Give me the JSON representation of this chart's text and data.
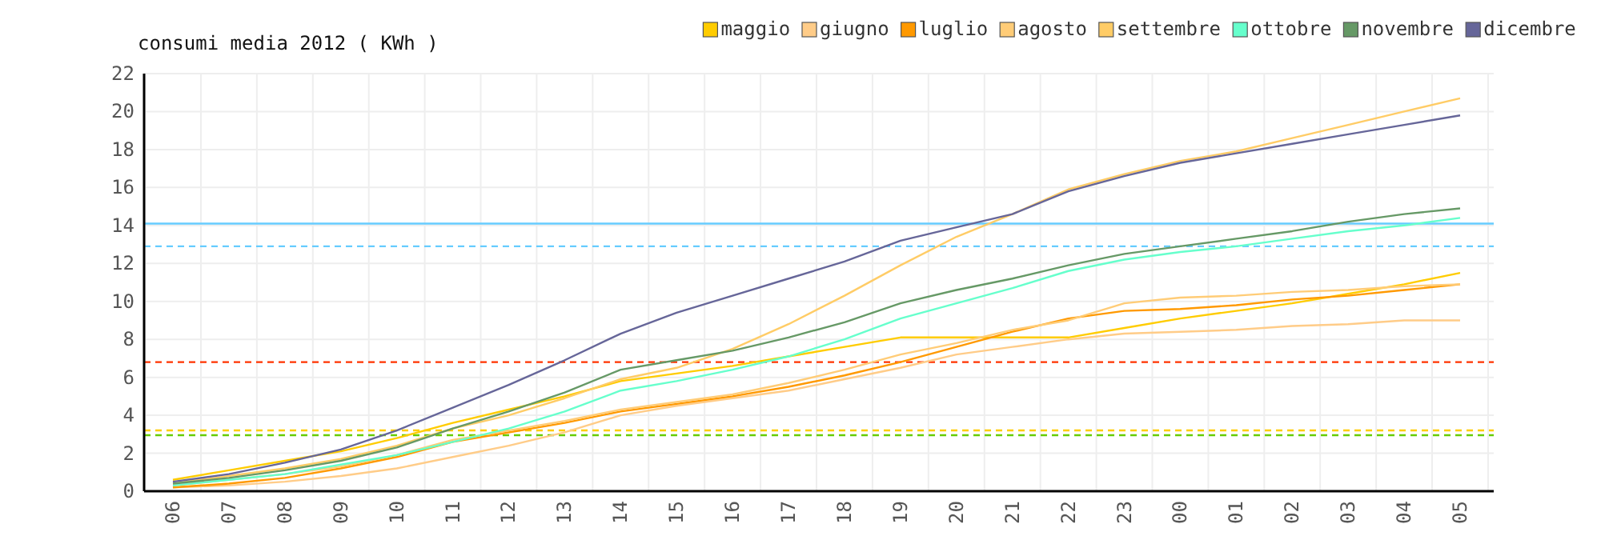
{
  "chart_data": {
    "type": "line",
    "title": "consumi media 2012 ( KWh )",
    "categories": [
      "06",
      "07",
      "08",
      "09",
      "10",
      "11",
      "12",
      "13",
      "14",
      "15",
      "16",
      "17",
      "18",
      "19",
      "20",
      "21",
      "22",
      "23",
      "00",
      "01",
      "02",
      "03",
      "04",
      "05"
    ],
    "series": [
      {
        "name": "maggio",
        "color": "#ffcc00",
        "values": [
          0.6,
          1.1,
          1.6,
          2.1,
          2.8,
          3.6,
          4.3,
          5.0,
          5.8,
          6.2,
          6.6,
          7.1,
          7.6,
          8.1,
          8.1,
          8.1,
          8.1,
          8.6,
          9.1,
          9.5,
          9.9,
          10.4,
          10.9,
          11.5
        ]
      },
      {
        "name": "giugno",
        "color": "#ffcc88",
        "values": [
          0.2,
          0.3,
          0.5,
          0.8,
          1.2,
          1.8,
          2.4,
          3.1,
          4.0,
          4.5,
          4.9,
          5.3,
          5.9,
          6.5,
          7.2,
          7.6,
          8.0,
          8.3,
          8.4,
          8.5,
          8.7,
          8.8,
          9.0,
          9.0
        ]
      },
      {
        "name": "luglio",
        "color": "#ff9900",
        "values": [
          0.2,
          0.4,
          0.7,
          1.2,
          1.8,
          2.6,
          3.1,
          3.6,
          4.2,
          4.6,
          5.0,
          5.5,
          6.1,
          6.8,
          7.6,
          8.4,
          9.1,
          9.5,
          9.6,
          9.8,
          10.1,
          10.3,
          10.6,
          10.9
        ]
      },
      {
        "name": "agosto",
        "color": "#ffcc77",
        "values": [
          0.3,
          0.6,
          0.9,
          1.3,
          1.9,
          2.7,
          3.2,
          3.7,
          4.3,
          4.7,
          5.1,
          5.7,
          6.4,
          7.2,
          7.8,
          8.5,
          9.0,
          9.9,
          10.2,
          10.3,
          10.5,
          10.6,
          10.8,
          10.9
        ]
      },
      {
        "name": "settembre",
        "color": "#ffcc66",
        "values": [
          0.4,
          0.8,
          1.2,
          1.7,
          2.4,
          3.3,
          4.0,
          4.9,
          5.9,
          6.5,
          7.5,
          8.8,
          10.3,
          11.9,
          13.4,
          14.6,
          15.9,
          16.7,
          17.4,
          17.9,
          18.6,
          19.3,
          20.0,
          20.7
        ]
      },
      {
        "name": "ottobre",
        "color": "#66ffcc",
        "values": [
          0.3,
          0.6,
          0.9,
          1.4,
          1.9,
          2.6,
          3.3,
          4.2,
          5.3,
          5.8,
          6.4,
          7.1,
          8.0,
          9.1,
          9.9,
          10.7,
          11.6,
          12.2,
          12.6,
          12.9,
          13.3,
          13.7,
          14.0,
          14.4
        ]
      },
      {
        "name": "novembre",
        "color": "#669966",
        "values": [
          0.4,
          0.7,
          1.1,
          1.6,
          2.3,
          3.3,
          4.2,
          5.2,
          6.4,
          6.9,
          7.4,
          8.1,
          8.9,
          9.9,
          10.6,
          11.2,
          11.9,
          12.5,
          12.9,
          13.3,
          13.7,
          14.2,
          14.6,
          14.9
        ]
      },
      {
        "name": "dicembre",
        "color": "#666699",
        "values": [
          0.5,
          0.9,
          1.5,
          2.2,
          3.2,
          4.4,
          5.6,
          6.9,
          8.3,
          9.4,
          10.3,
          11.2,
          12.1,
          13.2,
          13.9,
          14.6,
          15.8,
          16.6,
          17.3,
          17.8,
          18.3,
          18.8,
          19.3,
          19.8
        ]
      }
    ],
    "ylim": [
      0,
      22
    ],
    "yticks": [
      0,
      2,
      4,
      6,
      8,
      10,
      12,
      14,
      16,
      18,
      20,
      22
    ],
    "ref_lines": [
      {
        "axis": "y",
        "value": 14.1,
        "color": "#66ccff",
        "line_style": "solid"
      },
      {
        "axis": "y",
        "value": 12.9,
        "color": "#66ccff",
        "line_style": "dashed"
      },
      {
        "axis": "y",
        "value": 6.8,
        "color": "#ff3300",
        "line_style": "dashed"
      },
      {
        "axis": "y",
        "value": 3.2,
        "color": "#ffcc00",
        "line_style": "dashed"
      },
      {
        "axis": "y",
        "value": 2.95,
        "color": "#66cc00",
        "line_style": "dashed"
      }
    ],
    "grid": true,
    "legend": "top right",
    "marker": "none",
    "line_style": "solid"
  }
}
